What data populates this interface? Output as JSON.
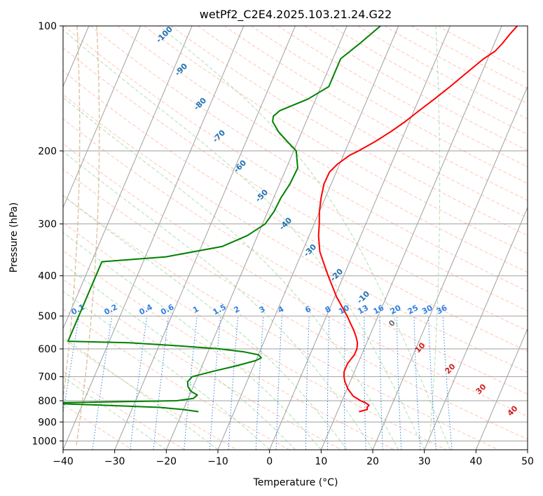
{
  "chart_data": {
    "type": "line",
    "title": "wetPf2_C2E4.2025.103.21.24.G22",
    "xlabel": "Temperature (°C)",
    "ylabel": "Pressure (hPa)",
    "xlim": [
      -40,
      50
    ],
    "ylim": [
      1050,
      100
    ],
    "y_scale": "log",
    "x_ticks": [
      -40,
      -30,
      -20,
      -10,
      0,
      10,
      20,
      30,
      40,
      50
    ],
    "x_tick_labels": [
      "−40",
      "−30",
      "−20",
      "−10",
      "0",
      "10",
      "20",
      "30",
      "40",
      "50"
    ],
    "y_ticks": [
      100,
      200,
      300,
      400,
      500,
      600,
      700,
      800,
      900,
      1000
    ],
    "y_tick_labels": [
      "100",
      "200",
      "300",
      "400",
      "500",
      "600",
      "700",
      "800",
      "900",
      "1000"
    ],
    "grid": true,
    "colors": {
      "temperature": "#ff0000",
      "dewpoint": "#008000",
      "isotherm": "#a0a0a0",
      "isobar": "#a0a0a0",
      "dry_adiabat": "#ffa080",
      "moist_adiabat": "#90d090",
      "mixing_ratio": "#3080e0",
      "moist_adiabat_label": "#2070b0",
      "dry_adiabat_label": "#d02020",
      "curved_adiabat": "#d8b890"
    },
    "series": [
      {
        "key": "temperature",
        "pressure": [
          850,
          840,
          830,
          820,
          810,
          800,
          780,
          750,
          720,
          700,
          680,
          650,
          620,
          600,
          580,
          560,
          540,
          520,
          500,
          480,
          450,
          420,
          400,
          380,
          350,
          320,
          300,
          280,
          260,
          240,
          225,
          215,
          205,
          200,
          190,
          180,
          170,
          160,
          150,
          140,
          130,
          120,
          115,
          110,
          105,
          100
        ],
        "values": [
          14.2,
          15.6,
          15.4,
          15.6,
          14.8,
          13.6,
          11.8,
          10.2,
          9.0,
          8.4,
          8.0,
          8.0,
          8.6,
          8.6,
          8.2,
          7.4,
          6.4,
          5.2,
          4.0,
          2.6,
          0.4,
          -1.6,
          -3.0,
          -4.4,
          -6.6,
          -8.2,
          -9.0,
          -10.0,
          -10.8,
          -11.4,
          -11.3,
          -10.4,
          -8.8,
          -7.4,
          -5.0,
          -2.8,
          -0.8,
          1.0,
          3.0,
          5.0,
          7.0,
          9.2,
          10.8,
          11.6,
          12.2,
          13.0
        ]
      },
      {
        "key": "dewpoint",
        "pressure": [
          850,
          840,
          830,
          820,
          810,
          800,
          790,
          775,
          760,
          740,
          720,
          700,
          680,
          660,
          640,
          630,
          620,
          610,
          600,
          590,
          580,
          575,
          370,
          360,
          340,
          320,
          300,
          280,
          260,
          240,
          220,
          200,
          190,
          180,
          170,
          165,
          160,
          150,
          140,
          130,
          120,
          110,
          100
        ],
        "values": [
          -16.9,
          -20.0,
          -24.8,
          -36.0,
          -48.0,
          -22.0,
          -19.0,
          -18.5,
          -20.0,
          -21.0,
          -21.5,
          -21.0,
          -17.5,
          -13.5,
          -10.0,
          -9.2,
          -10.0,
          -13.0,
          -18.0,
          -26.0,
          -36.0,
          -48.0,
          -48.0,
          -36.0,
          -26.0,
          -22.0,
          -19.5,
          -18.8,
          -18.6,
          -18.0,
          -17.8,
          -19.5,
          -22.0,
          -24.5,
          -26.5,
          -26.8,
          -26.0,
          -21.5,
          -18.5,
          -18.5,
          -18.5,
          -16.0,
          -13.5
        ]
      }
    ],
    "moist_adiabat_labels": [
      "-100",
      "-90",
      "-80",
      "-70",
      "-60",
      "-50",
      "-40",
      "-30",
      "-20",
      "-10",
      "0"
    ],
    "mixing_ratio_labels": [
      "0.1",
      "0.2",
      "0.4",
      "0.6",
      "1",
      "1.5",
      "2",
      "3",
      "4",
      "6",
      "8",
      "10",
      "13",
      "16",
      "20",
      "25",
      "30",
      "36"
    ],
    "dry_adiabat_labels": [
      "10",
      "20",
      "30",
      "40"
    ]
  }
}
